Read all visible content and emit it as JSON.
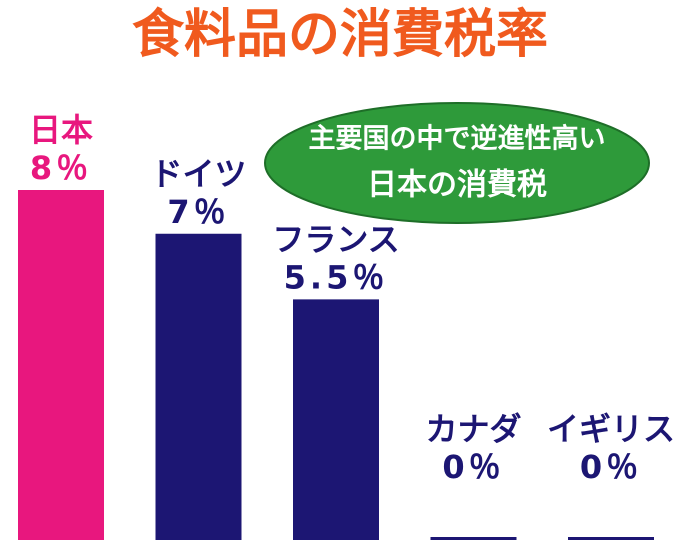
{
  "chart_data": {
    "type": "bar",
    "title": "食料品の消費税率",
    "annotation": [
      "主要国の中で逆進性高い",
      "日本の消費税"
    ],
    "categories": [
      "日本",
      "ドイツ",
      "フランス",
      "カナダ",
      "イギリス"
    ],
    "values": [
      8,
      7,
      5.5,
      0,
      0
    ],
    "value_labels": [
      "8％",
      "7％",
      "5.5％",
      "0％",
      "0％"
    ],
    "colors": [
      "#e8177e",
      "#1c1673",
      "#1c1673",
      "#1c1673",
      "#1c1673"
    ]
  }
}
